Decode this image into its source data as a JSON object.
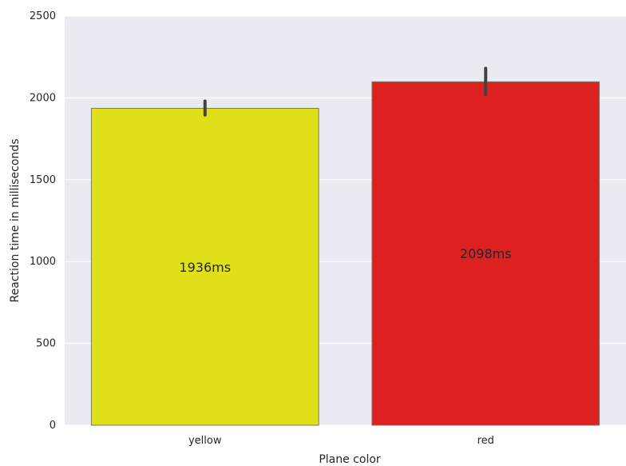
{
  "chart_data": {
    "type": "bar",
    "categories": [
      "yellow",
      "red"
    ],
    "values": [
      1936,
      2098
    ],
    "error_bars": [
      [
        1895,
        1980
      ],
      [
        2020,
        2180
      ]
    ],
    "data_labels": [
      "1936ms",
      "2098ms"
    ],
    "colors": [
      "#e0e01a",
      "#dd2020"
    ],
    "xlabel": "Plane color",
    "ylabel": "Reaction time in milliseconds",
    "ylim": [
      0,
      2500
    ],
    "yticks": [
      0,
      500,
      1000,
      1500,
      2000,
      2500
    ],
    "ytick_labels": [
      "0",
      "500",
      "1000",
      "1500",
      "2000",
      "2500"
    ],
    "grid": true,
    "background": "#eaeaf2"
  }
}
